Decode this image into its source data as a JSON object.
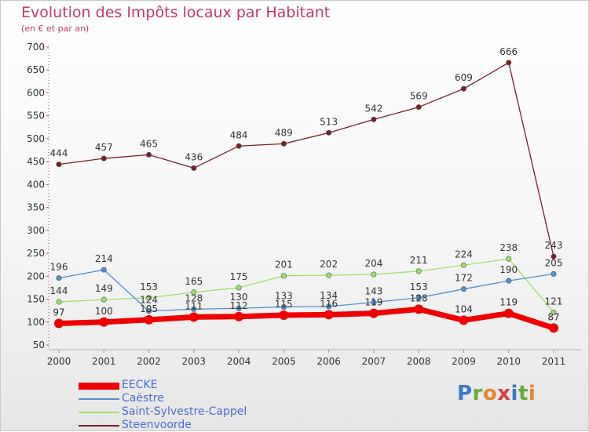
{
  "title": "Evolution des Impôts locaux par Habitant",
  "subtitle": "(en € et par an)",
  "logo": {
    "text": "Proxiti",
    "letters": [
      {
        "ch": "P",
        "color": "#3a78c9"
      },
      {
        "ch": "r",
        "color": "#6aaa3a"
      },
      {
        "ch": "o",
        "color": "#e8842a"
      },
      {
        "ch": "x",
        "color": "#d93a3a"
      },
      {
        "ch": "i",
        "color": "#3a78c9"
      },
      {
        "ch": "t",
        "color": "#6aaa3a"
      },
      {
        "ch": "i",
        "color": "#e8842a"
      }
    ]
  },
  "chart_data": {
    "type": "line",
    "x": [
      "2000",
      "2001",
      "2002",
      "2003",
      "2004",
      "2005",
      "2006",
      "2007",
      "2008",
      "2009",
      "2010",
      "2011"
    ],
    "ylim": [
      50,
      700
    ],
    "yticks": [
      "50",
      "100",
      "150",
      "200",
      "250",
      "300",
      "350",
      "400",
      "450",
      "500",
      "550",
      "600",
      "650",
      "700"
    ],
    "grid": false,
    "legend": "bottom-left",
    "series": [
      {
        "name": "Steenvoorde",
        "color": "#7b1f24",
        "values": [
          444,
          457,
          465,
          436,
          484,
          489,
          513,
          542,
          569,
          609,
          666,
          243
        ],
        "labels": [
          "444",
          "457",
          "465",
          "436",
          "484",
          "489",
          "513",
          "542",
          "569",
          "609",
          "666",
          "243"
        ]
      },
      {
        "name": "Saint-Sylvestre-Cappel",
        "color": "#9be06a",
        "values": [
          144,
          149,
          153,
          165,
          175,
          201,
          202,
          204,
          211,
          224,
          238,
          121
        ],
        "labels": [
          "144",
          "149",
          "153",
          "165",
          "175",
          "201",
          "202",
          "204",
          "211",
          "224",
          "238",
          "121"
        ]
      },
      {
        "name": "Caëstre",
        "color": "#4f8fd0",
        "values": [
          196,
          214,
          124,
          128,
          130,
          133,
          134,
          143,
          153,
          172,
          190,
          205
        ],
        "labels": [
          "196",
          "214",
          "124",
          "128",
          "130",
          "133",
          "134",
          "143",
          "153",
          "172",
          "190",
          "205"
        ]
      },
      {
        "name": "EECKE",
        "color": "#ee0000",
        "values": [
          97,
          100,
          105,
          111,
          112,
          115,
          116,
          119,
          128,
          104,
          119,
          87
        ],
        "labels": [
          "97",
          "100",
          "105",
          "111",
          "112",
          "115",
          "116",
          "119",
          "128",
          "104",
          "119",
          "87"
        ]
      }
    ]
  },
  "legend_items": [
    {
      "name": "EECKE",
      "color": "#ee0000"
    },
    {
      "name": "Caëstre",
      "color": "#4f8fd0"
    },
    {
      "name": "Saint-Sylvestre-Cappel",
      "color": "#9be06a"
    },
    {
      "name": "Steenvoorde",
      "color": "#7b1f24"
    }
  ]
}
